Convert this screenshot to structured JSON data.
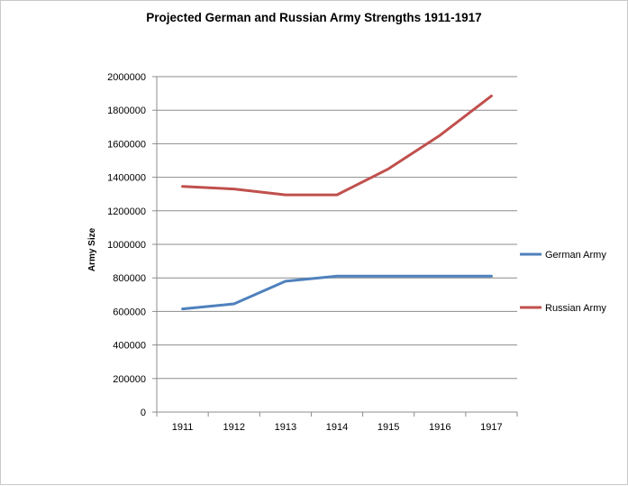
{
  "chart_data": {
    "type": "line",
    "title": "Projected German and Russian Army Strengths 1911-1917",
    "xlabel": "",
    "ylabel": "Army Size",
    "categories": [
      "1911",
      "1912",
      "1913",
      "1914",
      "1915",
      "1916",
      "1917"
    ],
    "ylim": [
      0,
      2000000
    ],
    "yticks": [
      "0",
      "200000",
      "400000",
      "600000",
      "800000",
      "1000000",
      "1200000",
      "1400000",
      "1600000",
      "1800000",
      "2000000"
    ],
    "grid": true,
    "legend_position": "right",
    "series": [
      {
        "name": "German Army",
        "color": "#4f81bd",
        "values": [
          615000,
          645000,
          780000,
          810000,
          810000,
          810000,
          810000
        ]
      },
      {
        "name": "Russian Army",
        "color": "#c0504d",
        "values": [
          1345000,
          1330000,
          1295000,
          1295000,
          1450000,
          1650000,
          1885000
        ]
      }
    ]
  }
}
